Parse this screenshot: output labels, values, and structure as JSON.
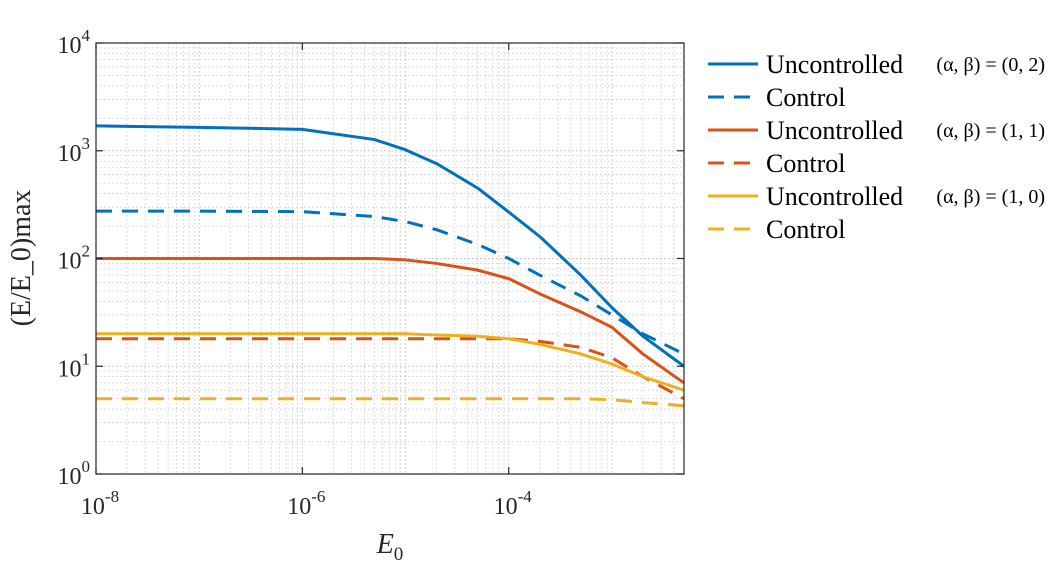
{
  "chart_data": {
    "type": "line",
    "xscale": "log",
    "yscale": "log",
    "xlim": [
      1e-08,
      0.005
    ],
    "ylim": [
      1,
      10000
    ],
    "xlabel": "E_0",
    "ylabel": "(E/E_0)max",
    "grid": true,
    "legend_position": "outside-right",
    "x_ticks": [
      {
        "value": 1e-08,
        "base": "10",
        "exp": "-8"
      },
      {
        "value": 1e-06,
        "base": "10",
        "exp": "-6"
      },
      {
        "value": 0.0001,
        "base": "10",
        "exp": "-4"
      }
    ],
    "y_ticks": [
      {
        "value": 1,
        "base": "10",
        "exp": "0"
      },
      {
        "value": 10,
        "base": "10",
        "exp": "1"
      },
      {
        "value": 100,
        "base": "10",
        "exp": "2"
      },
      {
        "value": 1000,
        "base": "10",
        "exp": "3"
      },
      {
        "value": 10000,
        "base": "10",
        "exp": "4"
      }
    ],
    "series": [
      {
        "name": "Uncontrolled",
        "param": "(α, β) = (0, 2)",
        "color": "#0072BD",
        "dashed": false,
        "x": [
          1e-08,
          1e-07,
          1e-06,
          5e-06,
          1e-05,
          2e-05,
          5e-05,
          0.0001,
          0.0002,
          0.0005,
          0.001,
          0.002,
          0.005
        ],
        "y": [
          1700,
          1650,
          1580,
          1270,
          1020,
          760,
          450,
          270,
          160,
          70,
          35,
          19,
          10
        ]
      },
      {
        "name": "Control",
        "param": "",
        "color": "#0072BD",
        "dashed": true,
        "x": [
          1e-08,
          1e-07,
          1e-06,
          5e-06,
          1e-05,
          2e-05,
          5e-05,
          0.0001,
          0.0002,
          0.0005,
          0.001,
          0.002,
          0.005
        ],
        "y": [
          275,
          275,
          272,
          245,
          220,
          185,
          135,
          100,
          70,
          45,
          30,
          20,
          13
        ]
      },
      {
        "name": "Uncontrolled",
        "param": "(α, β) = (1, 1)",
        "color": "#D95319",
        "dashed": false,
        "x": [
          1e-08,
          1e-07,
          1e-06,
          5e-06,
          1e-05,
          2e-05,
          5e-05,
          0.0001,
          0.0002,
          0.0005,
          0.001,
          0.002,
          0.005
        ],
        "y": [
          100,
          100,
          100,
          100,
          97,
          90,
          78,
          65,
          47,
          32,
          23,
          13,
          7
        ]
      },
      {
        "name": "Control",
        "param": "",
        "color": "#D95319",
        "dashed": true,
        "x": [
          1e-08,
          1e-07,
          1e-06,
          5e-06,
          1e-05,
          2e-05,
          5e-05,
          0.0001,
          0.0002,
          0.0005,
          0.001,
          0.002,
          0.005
        ],
        "y": [
          18,
          18,
          18,
          18,
          18,
          18,
          18,
          18,
          17,
          15,
          12,
          8,
          5
        ]
      },
      {
        "name": "Uncontrolled",
        "param": "(α, β) = (1, 0)",
        "color": "#EDB120",
        "dashed": false,
        "x": [
          1e-08,
          1e-07,
          1e-06,
          5e-06,
          1e-05,
          2e-05,
          5e-05,
          0.0001,
          0.0002,
          0.0005,
          0.001,
          0.002,
          0.005
        ],
        "y": [
          20,
          20,
          20,
          20,
          20,
          19.5,
          19,
          18,
          16,
          13,
          10.5,
          8,
          6
        ]
      },
      {
        "name": "Control",
        "param": "",
        "color": "#EDB120",
        "dashed": true,
        "x": [
          1e-08,
          1e-07,
          1e-06,
          5e-06,
          1e-05,
          2e-05,
          5e-05,
          0.0001,
          0.0002,
          0.0005,
          0.001,
          0.002,
          0.005
        ],
        "y": [
          5,
          5,
          5,
          5,
          5,
          5,
          5,
          5,
          5,
          5,
          4.9,
          4.6,
          4.3
        ]
      }
    ]
  }
}
